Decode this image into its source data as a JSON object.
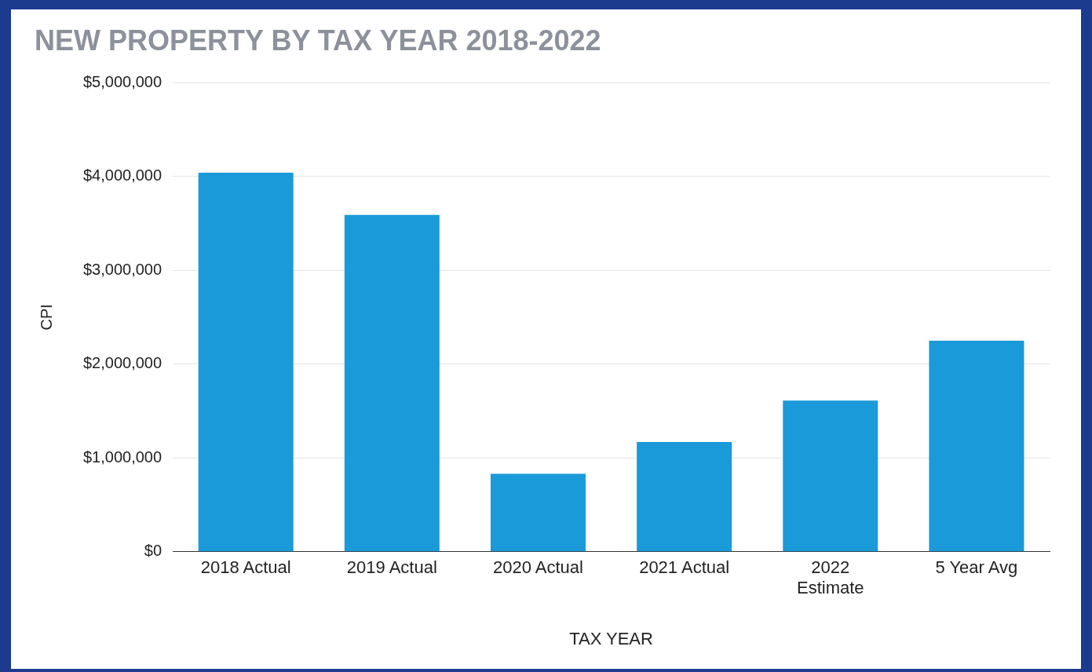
{
  "chart_data": {
    "type": "bar",
    "title": "NEW PROPERTY BY TAX YEAR 2018-2022",
    "xlabel": "TAX YEAR",
    "ylabel": "CPI",
    "categories": [
      "2018 Actual",
      "2019 Actual",
      "2020 Actual",
      "2021 Actual",
      "2022 Estimate",
      "5 Year Avg"
    ],
    "values": [
      4040000,
      3590000,
      830000,
      1170000,
      1610000,
      2250000
    ],
    "color": "#1a9ad8",
    "ylim": [
      0,
      5000000
    ],
    "yticks": [
      {
        "value": 0,
        "label": "$0"
      },
      {
        "value": 1000000,
        "label": "$1,000,000"
      },
      {
        "value": 2000000,
        "label": "$2,000,000"
      },
      {
        "value": 3000000,
        "label": "$3,000,000"
      },
      {
        "value": 4000000,
        "label": "$4,000,000"
      },
      {
        "value": 5000000,
        "label": "$5,000,000"
      }
    ],
    "grid": "y",
    "legend": false
  }
}
